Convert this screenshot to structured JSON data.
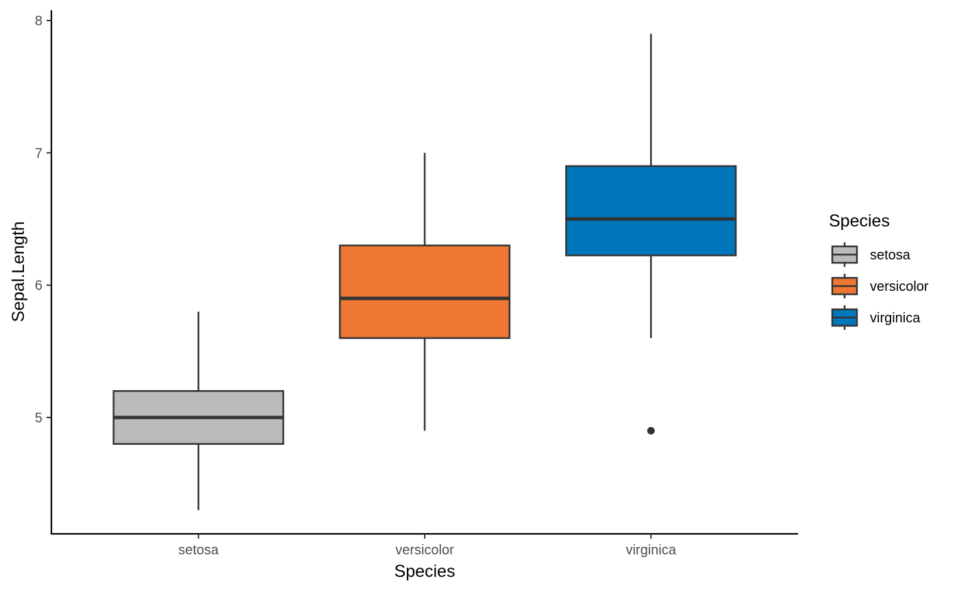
{
  "chart_data": {
    "type": "box",
    "xlabel": "Species",
    "ylabel": "Sepal.Length",
    "categories": [
      "setosa",
      "versicolor",
      "virginica"
    ],
    "ylim": [
      4.2,
      8.08
    ],
    "yticks": [
      "5",
      "6",
      "7",
      "8"
    ],
    "grid": false,
    "legend": {
      "title": "Species",
      "placement": "right",
      "entries": [
        "setosa",
        "versicolor",
        "virginica"
      ]
    },
    "series": [
      {
        "category": "setosa",
        "color": "#BBBBBB",
        "min": 4.3,
        "q1": 4.8,
        "median": 5.0,
        "q3": 5.2,
        "max": 5.8,
        "outliers": []
      },
      {
        "category": "versicolor",
        "color": "#EE7733",
        "min": 4.9,
        "q1": 5.6,
        "median": 5.9,
        "q3": 6.3,
        "max": 7.0,
        "outliers": []
      },
      {
        "category": "virginica",
        "color": "#0077BB",
        "min": 5.6,
        "q1": 6.225,
        "median": 6.5,
        "q3": 6.9,
        "max": 7.9,
        "outliers": [
          4.9
        ]
      }
    ]
  }
}
